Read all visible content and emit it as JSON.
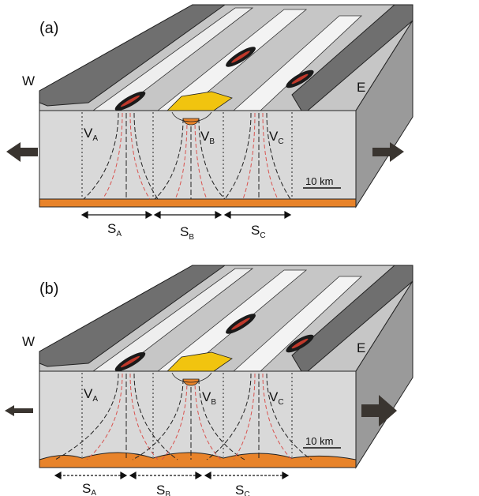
{
  "panels": [
    {
      "id": "a",
      "label": "(a)",
      "west": "W",
      "east": "E",
      "volcanoes": [
        {
          "main": "V",
          "sub": "A"
        },
        {
          "main": "V",
          "sub": "B"
        },
        {
          "main": "V",
          "sub": "C"
        }
      ],
      "segments": [
        {
          "main": "S",
          "sub": "A"
        },
        {
          "main": "S",
          "sub": "B"
        },
        {
          "main": "S",
          "sub": "C"
        }
      ],
      "scale_bar": "10 km",
      "arrow_style": "equal",
      "segment_arrows": "solid"
    },
    {
      "id": "b",
      "label": "(b)",
      "west": "W",
      "east": "E",
      "volcanoes": [
        {
          "main": "V",
          "sub": "A"
        },
        {
          "main": "V",
          "sub": "B"
        },
        {
          "main": "V",
          "sub": "C"
        }
      ],
      "segments": [
        {
          "main": "S",
          "sub": "A"
        },
        {
          "main": "S",
          "sub": "B"
        },
        {
          "main": "S",
          "sub": "C"
        }
      ],
      "scale_bar": "10 km",
      "arrow_style": "east-larger",
      "segment_arrows": "dotted"
    }
  ],
  "colors": {
    "block_front": "#d9d9d9",
    "block_top": "#bfbfbf",
    "shoulder": "#6e6e6e",
    "magma_layer": "#e8832a",
    "lava": "#1a1a1a",
    "lava_core": "#c0392b",
    "caldera": "#f1c40f",
    "dike_red": "#d9534f",
    "arrow": "#3a3530"
  }
}
